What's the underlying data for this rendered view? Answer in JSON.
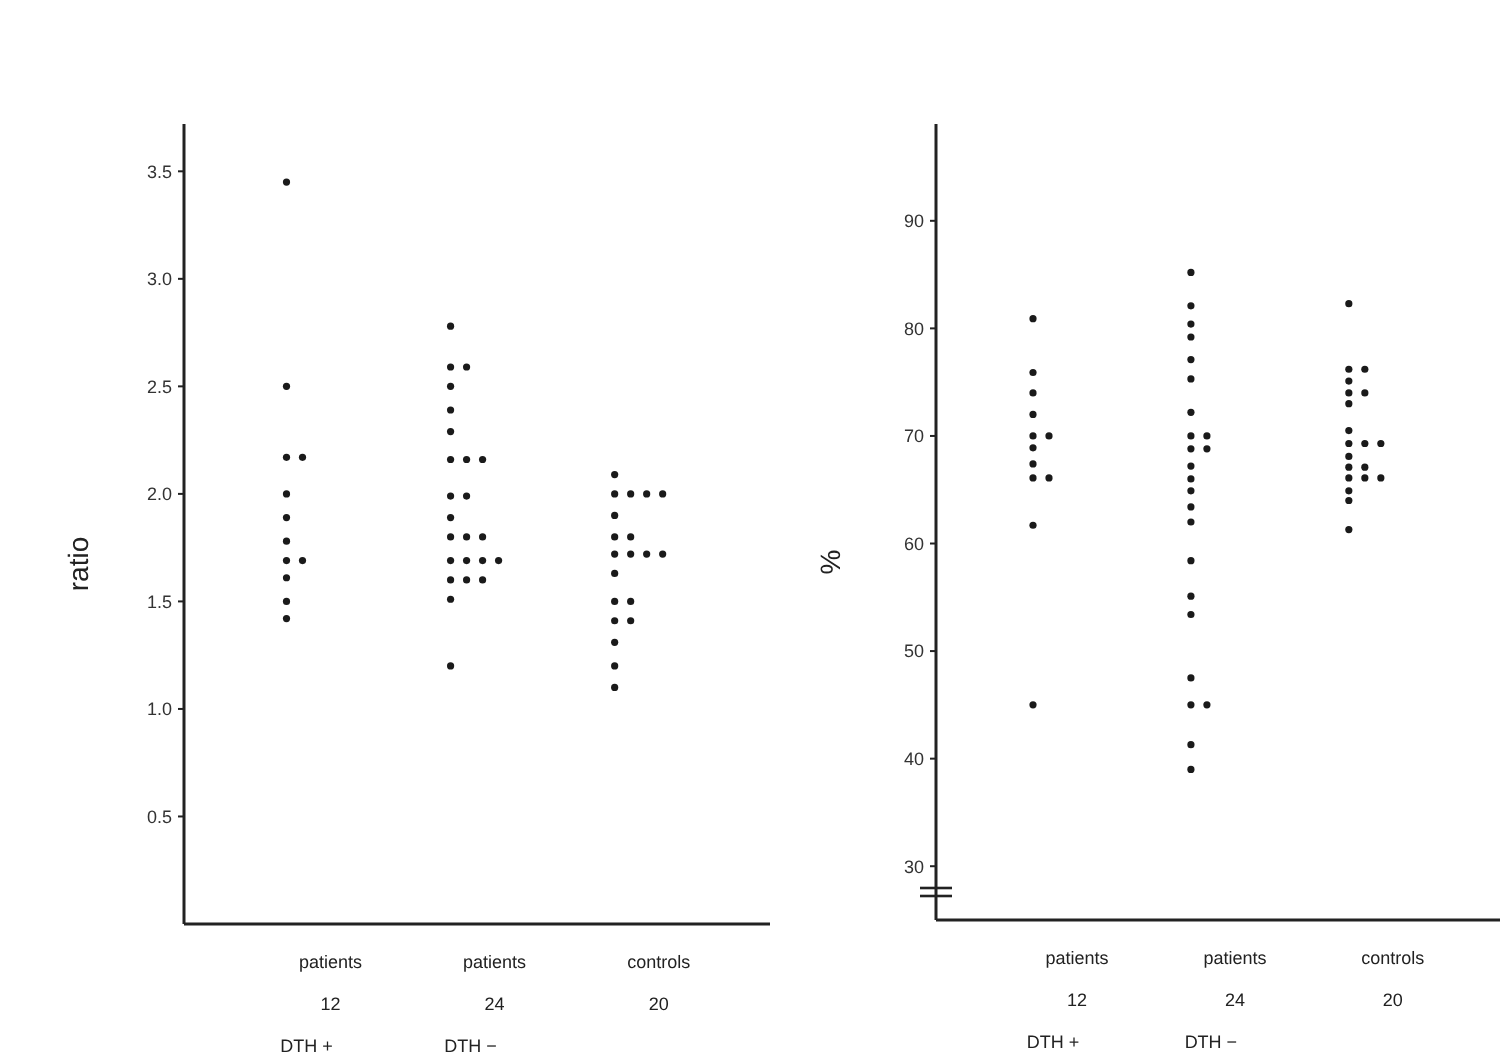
{
  "chart_data": [
    {
      "type": "scatter",
      "ylabel": "ratio",
      "categories": [
        "patients\n12\nDTH +",
        "patients\n24\nDTH −",
        "controls\n20"
      ],
      "ylim": [
        0,
        3.72
      ],
      "yticks": [
        {
          "value": 0.5,
          "label": "0.5"
        },
        {
          "value": 1,
          "label": "1.0"
        },
        {
          "value": 1.5,
          "label": "1.5"
        },
        {
          "value": 2,
          "label": "2.0"
        },
        {
          "value": 2.5,
          "label": "2.5"
        },
        {
          "value": 3,
          "label": "3.0"
        },
        {
          "value": 3.5,
          "label": "3.5"
        }
      ],
      "grid": false,
      "marker": "circle",
      "series": [
        {
          "color": "#1a1a1a",
          "x": [
            "patients\n12\nDTH +",
            "patients\n12\nDTH +",
            "patients\n12\nDTH +",
            "patients\n12\nDTH +",
            "patients\n12\nDTH +",
            "patients\n12\nDTH +",
            "patients\n12\nDTH +",
            "patients\n12\nDTH +",
            "patients\n12\nDTH +",
            "patients\n12\nDTH +",
            "patients\n12\nDTH +",
            "patients\n12\nDTH +",
            "patients\n24\nDTH −",
            "patients\n24\nDTH −",
            "patients\n24\nDTH −",
            "patients\n24\nDTH −",
            "patients\n24\nDTH −",
            "patients\n24\nDTH −",
            "patients\n24\nDTH −",
            "patients\n24\nDTH −",
            "patients\n24\nDTH −",
            "patients\n24\nDTH −",
            "patients\n24\nDTH −",
            "patients\n24\nDTH −",
            "patients\n24\nDTH −",
            "patients\n24\nDTH −",
            "patients\n24\nDTH −",
            "patients\n24\nDTH −",
            "patients\n24\nDTH −",
            "patients\n24\nDTH −",
            "patients\n24\nDTH −",
            "patients\n24\nDTH −",
            "patients\n24\nDTH −",
            "patients\n24\nDTH −",
            "patients\n24\nDTH −",
            "patients\n24\nDTH −",
            "controls\n20",
            "controls\n20",
            "controls\n20",
            "controls\n20",
            "controls\n20",
            "controls\n20",
            "controls\n20",
            "controls\n20",
            "controls\n20",
            "controls\n20",
            "controls\n20",
            "controls\n20",
            "controls\n20",
            "controls\n20",
            "controls\n20",
            "controls\n20",
            "controls\n20",
            "controls\n20",
            "controls\n20",
            "controls\n20"
          ],
          "values": [
            3.45,
            2.5,
            2.17,
            2.17,
            2.0,
            1.89,
            1.78,
            1.69,
            1.69,
            1.61,
            1.5,
            1.42,
            2.78,
            2.59,
            2.59,
            2.5,
            2.39,
            2.29,
            2.16,
            2.16,
            2.16,
            1.99,
            1.99,
            1.89,
            1.8,
            1.8,
            1.8,
            1.69,
            1.69,
            1.69,
            1.69,
            1.6,
            1.6,
            1.6,
            1.51,
            1.2,
            2.09,
            2.0,
            2.0,
            2.0,
            2.0,
            1.9,
            1.8,
            1.8,
            1.72,
            1.72,
            1.72,
            1.72,
            1.63,
            1.5,
            1.5,
            1.41,
            1.41,
            1.31,
            1.2,
            1.1
          ]
        }
      ]
    },
    {
      "type": "scatter",
      "ylabel": "%",
      "categories": [
        "patients\n12\nDTH +",
        "patients\n24\nDTH −",
        "controls\n20"
      ],
      "ylim": [
        25,
        99
      ],
      "yticks": [
        30,
        40,
        50,
        60,
        70,
        80,
        90
      ],
      "grid": false,
      "marker": "circle",
      "series": [
        {
          "color": "#1a1a1a",
          "x": [
            "patients\n12\nDTH +",
            "patients\n12\nDTH +",
            "patients\n12\nDTH +",
            "patients\n12\nDTH +",
            "patients\n12\nDTH +",
            "patients\n12\nDTH +",
            "patients\n12\nDTH +",
            "patients\n12\nDTH +",
            "patients\n12\nDTH +",
            "patients\n12\nDTH +",
            "patients\n12\nDTH +",
            "patients\n12\nDTH +",
            "patients\n24\nDTH −",
            "patients\n24\nDTH −",
            "patients\n24\nDTH −",
            "patients\n24\nDTH −",
            "patients\n24\nDTH −",
            "patients\n24\nDTH −",
            "patients\n24\nDTH −",
            "patients\n24\nDTH −",
            "patients\n24\nDTH −",
            "patients\n24\nDTH −",
            "patients\n24\nDTH −",
            "patients\n24\nDTH −",
            "patients\n24\nDTH −",
            "patients\n24\nDTH −",
            "patients\n24\nDTH −",
            "patients\n24\nDTH −",
            "patients\n24\nDTH −",
            "patients\n24\nDTH −",
            "patients\n24\nDTH −",
            "patients\n24\nDTH −",
            "patients\n24\nDTH −",
            "patients\n24\nDTH −",
            "patients\n24\nDTH −",
            "patients\n24\nDTH −",
            "controls\n20",
            "controls\n20",
            "controls\n20",
            "controls\n20",
            "controls\n20",
            "controls\n20",
            "controls\n20",
            "controls\n20",
            "controls\n20",
            "controls\n20",
            "controls\n20",
            "controls\n20",
            "controls\n20",
            "controls\n20",
            "controls\n20",
            "controls\n20",
            "controls\n20",
            "controls\n20",
            "controls\n20",
            "controls\n20"
          ],
          "values": [
            80.9,
            75.9,
            74,
            72,
            70,
            70,
            68.9,
            67.4,
            66.1,
            66.1,
            61.7,
            45,
            85.2,
            82.1,
            80.4,
            79.2,
            77.1,
            75.3,
            72.2,
            70,
            70,
            68.8,
            68.8,
            67.2,
            66,
            64.9,
            63.4,
            62,
            58.4,
            55.1,
            53.4,
            47.5,
            45,
            45,
            41.3,
            39,
            82.3,
            76.2,
            76.2,
            75.1,
            74,
            74,
            73,
            70.5,
            69.3,
            69.3,
            69.3,
            68.1,
            67.1,
            67.1,
            66.1,
            66.1,
            66.1,
            64.9,
            64,
            61.3
          ]
        }
      ]
    }
  ]
}
